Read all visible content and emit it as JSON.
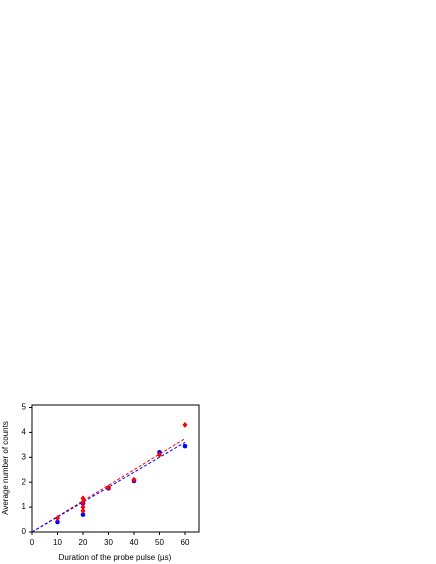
{
  "chart_data": {
    "type": "scatter",
    "x_label": "Duration of the probe pulse (µs)",
    "y_label": "Average number of counts",
    "xlim": [
      0,
      65.5
    ],
    "ylim": [
      0,
      5.1
    ],
    "xticks": [
      0,
      10,
      20,
      30,
      40,
      50,
      60
    ],
    "yticks": [
      0,
      1,
      2,
      3,
      4,
      5
    ],
    "grid": false,
    "series": [
      {
        "color": "#0000ff",
        "marker": "circle",
        "x": [
          10,
          20,
          20,
          30,
          40,
          50,
          60
        ],
        "values": [
          0.4,
          0.7,
          1.15,
          1.75,
          2.05,
          3.2,
          3.45
        ]
      },
      {
        "color": "#ff0000",
        "marker": "diamond",
        "x": [
          10,
          20,
          20,
          20,
          20,
          30,
          40,
          50,
          60
        ],
        "values": [
          0.55,
          1.35,
          1.2,
          1.0,
          0.85,
          1.78,
          2.1,
          3.1,
          4.3
        ]
      },
      {
        "color": "#ff0000",
        "style": "dashed",
        "x": [
          0,
          60
        ],
        "values": [
          0,
          3.75
        ]
      },
      {
        "color": "#0000ff",
        "style": "dashed",
        "x": [
          0,
          60
        ],
        "values": [
          0,
          3.6
        ]
      }
    ]
  }
}
